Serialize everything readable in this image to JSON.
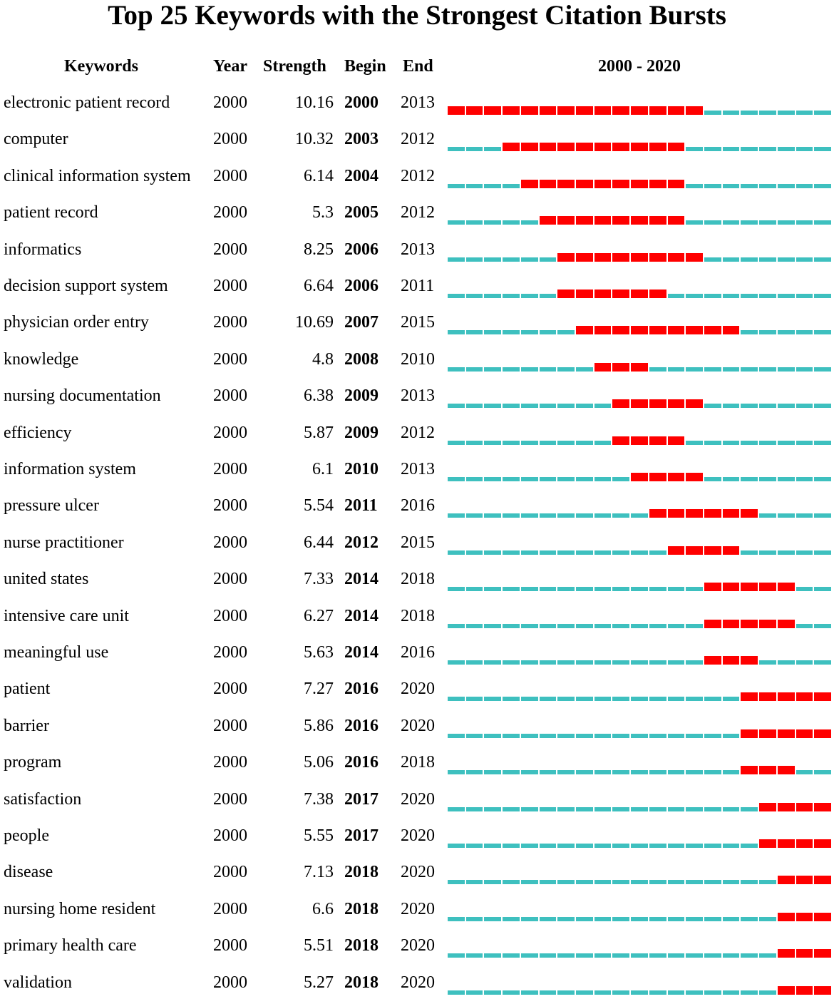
{
  "title": "Top 25 Keywords with the Strongest Citation Bursts",
  "columns": {
    "keyword": "Keywords",
    "year": "Year",
    "strength": "Strength",
    "begin": "Begin",
    "end": "End",
    "range": "2000 - 2020"
  },
  "colors": {
    "burst": "#ff0000",
    "normal": "#3ec0bf"
  },
  "chart_data": {
    "type": "table",
    "title": "Top 25 Keywords with the Strongest Citation Bursts",
    "range_start": 2000,
    "range_end": 2020,
    "rows": [
      {
        "keyword": "electronic patient record",
        "year": "2000",
        "strength": "10.16",
        "begin": "2000",
        "end": "2013"
      },
      {
        "keyword": "computer",
        "year": "2000",
        "strength": "10.32",
        "begin": "2003",
        "end": "2012"
      },
      {
        "keyword": "clinical information system",
        "year": "2000",
        "strength": "6.14",
        "begin": "2004",
        "end": "2012"
      },
      {
        "keyword": "patient record",
        "year": "2000",
        "strength": "5.3",
        "begin": "2005",
        "end": "2012"
      },
      {
        "keyword": "informatics",
        "year": "2000",
        "strength": "8.25",
        "begin": "2006",
        "end": "2013"
      },
      {
        "keyword": "decision support system",
        "year": "2000",
        "strength": "6.64",
        "begin": "2006",
        "end": "2011"
      },
      {
        "keyword": "physician order entry",
        "year": "2000",
        "strength": "10.69",
        "begin": "2007",
        "end": "2015"
      },
      {
        "keyword": "knowledge",
        "year": "2000",
        "strength": "4.8",
        "begin": "2008",
        "end": "2010"
      },
      {
        "keyword": "nursing documentation",
        "year": "2000",
        "strength": "6.38",
        "begin": "2009",
        "end": "2013"
      },
      {
        "keyword": "efficiency",
        "year": "2000",
        "strength": "5.87",
        "begin": "2009",
        "end": "2012"
      },
      {
        "keyword": "information system",
        "year": "2000",
        "strength": "6.1",
        "begin": "2010",
        "end": "2013"
      },
      {
        "keyword": "pressure ulcer",
        "year": "2000",
        "strength": "5.54",
        "begin": "2011",
        "end": "2016"
      },
      {
        "keyword": "nurse practitioner",
        "year": "2000",
        "strength": "6.44",
        "begin": "2012",
        "end": "2015"
      },
      {
        "keyword": "united states",
        "year": "2000",
        "strength": "7.33",
        "begin": "2014",
        "end": "2018"
      },
      {
        "keyword": "intensive care unit",
        "year": "2000",
        "strength": "6.27",
        "begin": "2014",
        "end": "2018"
      },
      {
        "keyword": "meaningful use",
        "year": "2000",
        "strength": "5.63",
        "begin": "2014",
        "end": "2016"
      },
      {
        "keyword": "patient",
        "year": "2000",
        "strength": "7.27",
        "begin": "2016",
        "end": "2020"
      },
      {
        "keyword": "barrier",
        "year": "2000",
        "strength": "5.86",
        "begin": "2016",
        "end": "2020"
      },
      {
        "keyword": "program",
        "year": "2000",
        "strength": "5.06",
        "begin": "2016",
        "end": "2018"
      },
      {
        "keyword": "satisfaction",
        "year": "2000",
        "strength": "7.38",
        "begin": "2017",
        "end": "2020"
      },
      {
        "keyword": "people",
        "year": "2000",
        "strength": "5.55",
        "begin": "2017",
        "end": "2020"
      },
      {
        "keyword": "disease",
        "year": "2000",
        "strength": "7.13",
        "begin": "2018",
        "end": "2020"
      },
      {
        "keyword": "nursing home resident",
        "year": "2000",
        "strength": "6.6",
        "begin": "2018",
        "end": "2020"
      },
      {
        "keyword": "primary health care",
        "year": "2000",
        "strength": "5.51",
        "begin": "2018",
        "end": "2020"
      },
      {
        "keyword": "validation",
        "year": "2000",
        "strength": "5.27",
        "begin": "2018",
        "end": "2020"
      }
    ]
  }
}
